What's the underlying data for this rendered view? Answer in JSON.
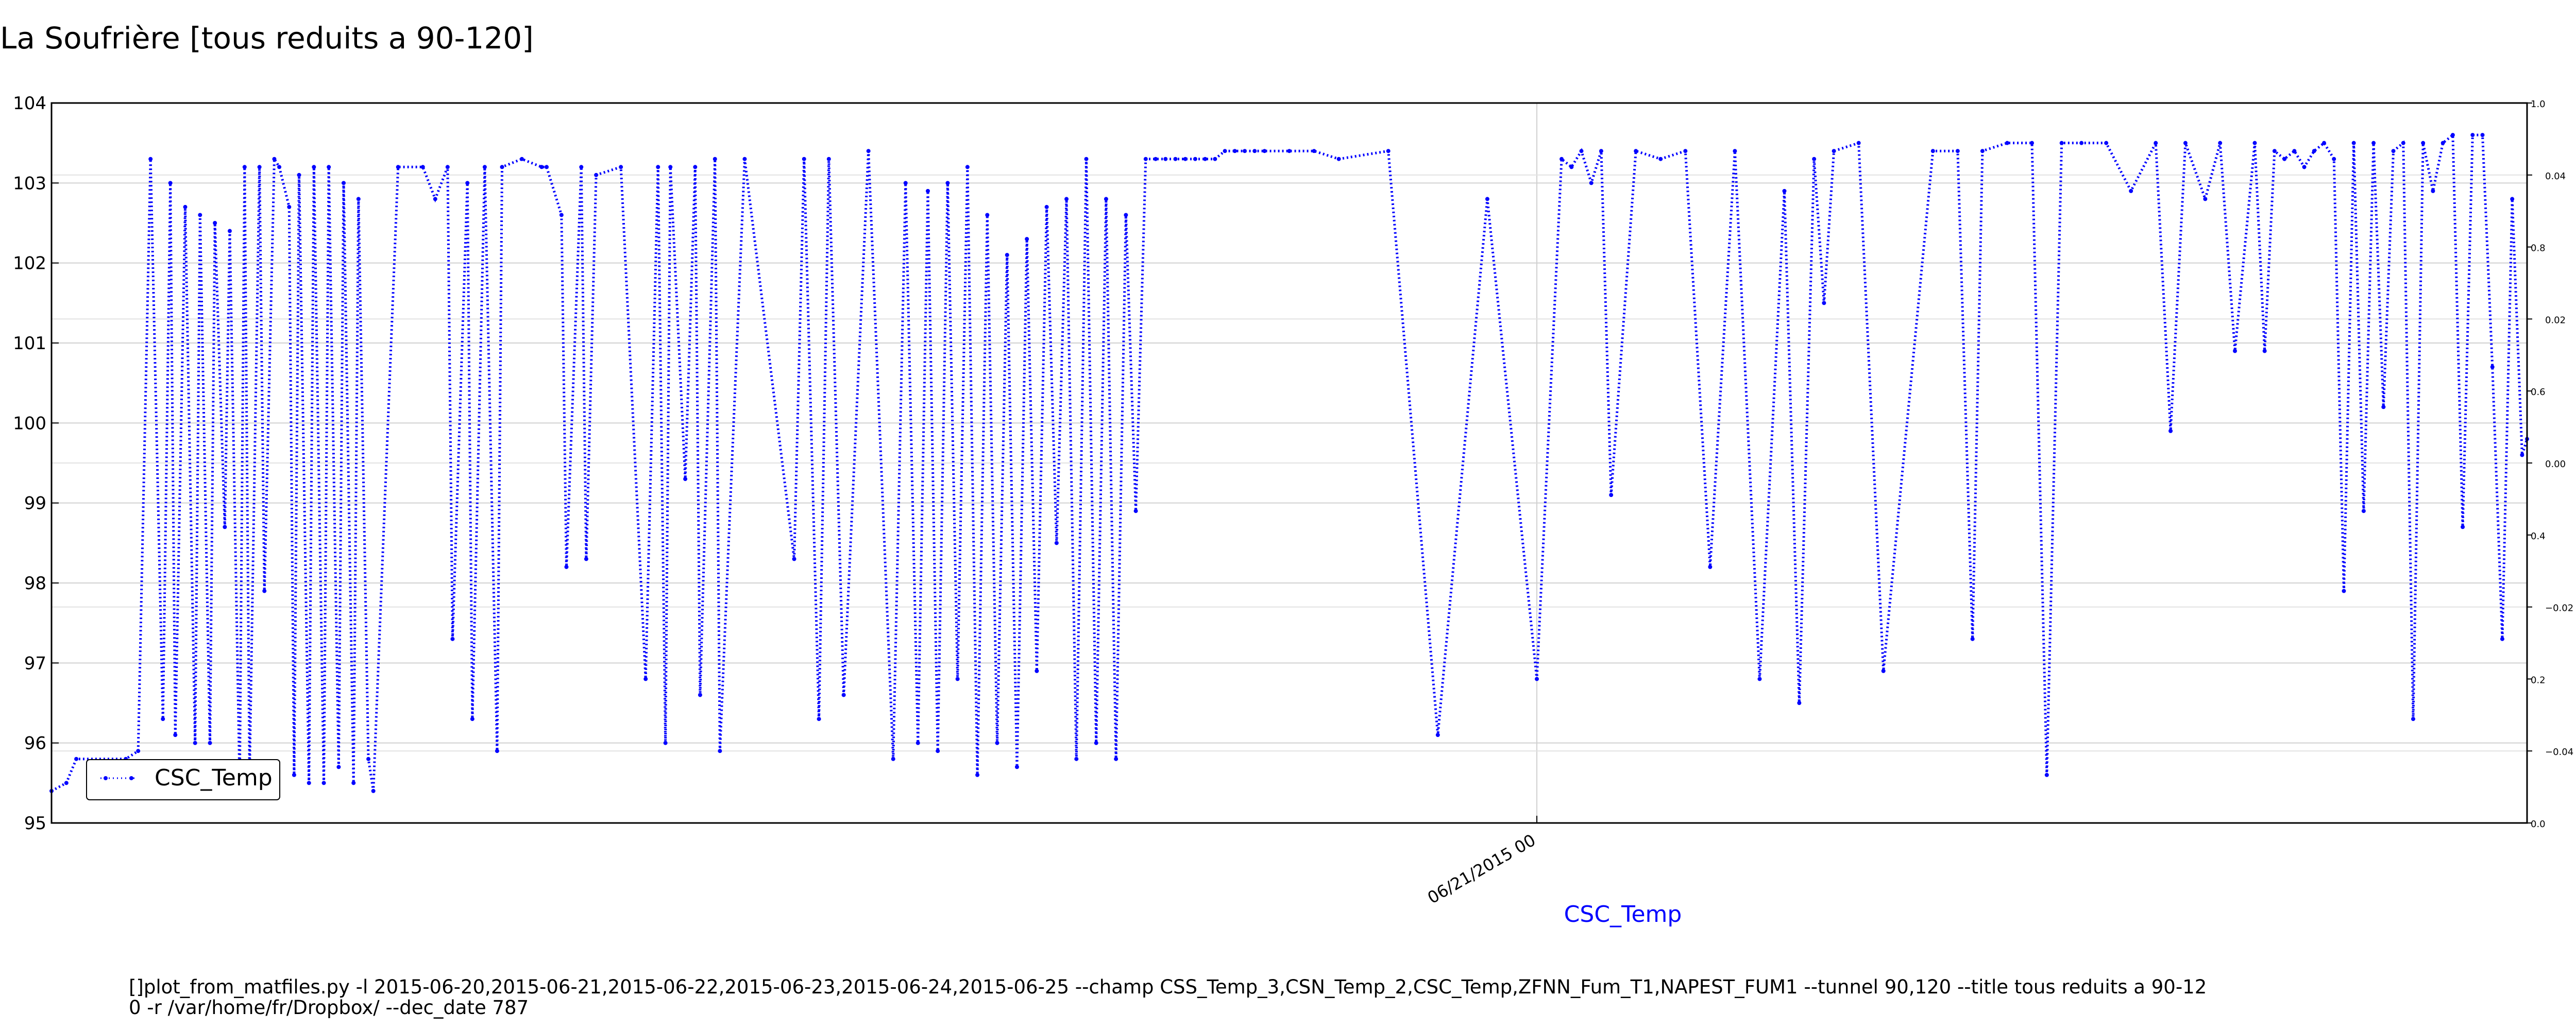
{
  "title": "La Soufrière [tous reduits a 90-120]",
  "footer": {
    "line1": "[]plot_from_matfiles.py -l 2015-06-20,2015-06-21,2015-06-22,2015-06-23,2015-06-24,2015-06-25 --champ CSS_Temp_3,CSN_Temp_2,CSC_Temp,ZFNN_Fum_T1,NAPEST_FUM1 --tunnel 90,120 --title tous reduits a 90-12",
    "line2": "0 -r /var/home/fr/Dropbox/ --dec_date 787"
  },
  "chart_data": {
    "type": "line",
    "xlabel": "CSC_Temp",
    "ylabel": "",
    "grid": true,
    "legend": {
      "placement": "bottom-left",
      "entries": [
        "CSC_Temp"
      ]
    },
    "colors": {
      "series": "#0000ff",
      "xlabel": "#0000ff"
    },
    "y": {
      "lim": [
        95,
        104
      ],
      "ticks": [
        "95",
        "96",
        "97",
        "98",
        "99",
        "100",
        "101",
        "102",
        "103",
        "104"
      ]
    },
    "x": {
      "lim": [
        0,
        1
      ],
      "ticks": [
        {
          "value": 0.6,
          "label": "06/21/2015 00"
        }
      ]
    },
    "right_axis_1": {
      "lim": [
        0.0,
        1.0
      ],
      "ticks": [
        "0.0",
        "0.2",
        "0.4",
        "0.6",
        "0.8",
        "1.0"
      ]
    },
    "right_axis_2": {
      "lim": [
        -0.05,
        0.05
      ],
      "ticks": [
        "−0.04",
        "−0.02",
        "0.00",
        "0.02",
        "0.04"
      ]
    },
    "series": [
      {
        "name": "CSC_Temp",
        "style": "dotted",
        "x": [
          0.0,
          0.006,
          0.01,
          0.03,
          0.035,
          0.04,
          0.045,
          0.048,
          0.05,
          0.054,
          0.058,
          0.06,
          0.064,
          0.066,
          0.07,
          0.072,
          0.076,
          0.078,
          0.08,
          0.084,
          0.086,
          0.09,
          0.092,
          0.096,
          0.098,
          0.1,
          0.104,
          0.106,
          0.11,
          0.112,
          0.116,
          0.118,
          0.122,
          0.124,
          0.128,
          0.13,
          0.14,
          0.15,
          0.155,
          0.16,
          0.162,
          0.168,
          0.17,
          0.175,
          0.18,
          0.182,
          0.19,
          0.198,
          0.2,
          0.206,
          0.208,
          0.214,
          0.216,
          0.22,
          0.23,
          0.24,
          0.245,
          0.248,
          0.25,
          0.256,
          0.26,
          0.262,
          0.268,
          0.27,
          0.28,
          0.3,
          0.304,
          0.31,
          0.314,
          0.32,
          0.33,
          0.34,
          0.345,
          0.35,
          0.354,
          0.358,
          0.362,
          0.366,
          0.37,
          0.374,
          0.378,
          0.382,
          0.386,
          0.39,
          0.394,
          0.398,
          0.402,
          0.406,
          0.41,
          0.414,
          0.418,
          0.422,
          0.426,
          0.43,
          0.434,
          0.438,
          0.442,
          0.446,
          0.45,
          0.454,
          0.458,
          0.462,
          0.466,
          0.47,
          0.474,
          0.478,
          0.482,
          0.486,
          0.49,
          0.5,
          0.51,
          0.52,
          0.54,
          0.56,
          0.58,
          0.6,
          0.61,
          0.614,
          0.618,
          0.622,
          0.626,
          0.63,
          0.64,
          0.65,
          0.66,
          0.67,
          0.68,
          0.69,
          0.7,
          0.706,
          0.712,
          0.716,
          0.72,
          0.73,
          0.74,
          0.76,
          0.77,
          0.776,
          0.78,
          0.79,
          0.8,
          0.806,
          0.812,
          0.82,
          0.83,
          0.84,
          0.85,
          0.856,
          0.862,
          0.87,
          0.876,
          0.882,
          0.89,
          0.894,
          0.898,
          0.902,
          0.906,
          0.91,
          0.914,
          0.918,
          0.922,
          0.926,
          0.93,
          0.934,
          0.938,
          0.942,
          0.946,
          0.95,
          0.954,
          0.958,
          0.962,
          0.966,
          0.97,
          0.974,
          0.978,
          0.982,
          0.986,
          0.99,
          0.994,
          0.998,
          1.0
        ],
        "values": [
          95.4,
          95.5,
          95.8,
          95.8,
          95.9,
          103.3,
          96.3,
          103.0,
          96.1,
          102.7,
          96.0,
          102.6,
          96.0,
          102.5,
          98.7,
          102.4,
          95.5,
          103.2,
          95.6,
          103.2,
          97.9,
          103.3,
          103.2,
          102.7,
          95.6,
          103.1,
          95.5,
          103.2,
          95.5,
          103.2,
          95.7,
          103.0,
          95.5,
          102.8,
          95.8,
          95.4,
          103.2,
          103.2,
          102.8,
          103.2,
          97.3,
          103.0,
          96.3,
          103.2,
          95.9,
          103.2,
          103.3,
          103.2,
          103.2,
          102.6,
          98.2,
          103.2,
          98.3,
          103.1,
          103.2,
          96.8,
          103.2,
          96.0,
          103.2,
          99.3,
          103.2,
          96.6,
          103.3,
          95.9,
          103.3,
          98.3,
          103.3,
          96.3,
          103.3,
          96.6,
          103.4,
          95.8,
          103.0,
          96.0,
          102.9,
          95.9,
          103.0,
          96.8,
          103.2,
          95.6,
          102.6,
          96.0,
          102.1,
          95.7,
          102.3,
          96.9,
          102.7,
          98.5,
          102.8,
          95.8,
          103.3,
          96.0,
          102.8,
          95.8,
          102.6,
          98.9,
          103.3,
          103.3,
          103.3,
          103.3,
          103.3,
          103.3,
          103.3,
          103.3,
          103.4,
          103.4,
          103.4,
          103.4,
          103.4,
          103.4,
          103.4,
          103.3,
          103.4,
          96.1,
          102.8,
          96.8,
          103.3,
          103.2,
          103.4,
          103.0,
          103.4,
          99.1,
          103.4,
          103.3,
          103.4,
          98.2,
          103.4,
          96.8,
          102.9,
          96.5,
          103.3,
          101.5,
          103.4,
          103.5,
          96.9,
          103.4,
          103.4,
          97.3,
          103.4,
          103.5,
          103.5,
          95.6,
          103.5,
          103.5,
          103.5,
          102.9,
          103.5,
          99.9,
          103.5,
          102.8,
          103.5,
          100.9,
          103.5,
          100.9,
          103.4,
          103.3,
          103.4,
          103.2,
          103.4,
          103.5,
          103.3,
          97.9,
          103.5,
          98.9,
          103.5,
          100.2,
          103.4,
          103.5,
          96.3,
          103.5,
          102.9,
          103.5,
          103.6,
          98.7,
          103.6,
          103.6,
          100.7,
          97.3,
          102.8,
          99.6,
          99.8
        ]
      }
    ]
  }
}
